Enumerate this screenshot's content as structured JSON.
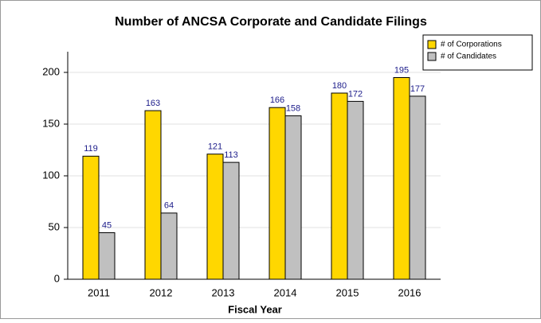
{
  "chart_data": {
    "type": "bar",
    "title": "Number of ANCSA Corporate and Candidate Filings",
    "xlabel": "Fiscal Year",
    "categories": [
      "2011",
      "2012",
      "2013",
      "2014",
      "2015",
      "2016"
    ],
    "series": [
      {
        "name": "# of Corporations",
        "color": "#ffd700",
        "values": [
          119,
          163,
          121,
          166,
          180,
          195
        ]
      },
      {
        "name": "# of Candidates",
        "color": "#c0c0c0",
        "values": [
          45,
          64,
          113,
          158,
          172,
          177
        ]
      }
    ],
    "ylim": [
      0,
      220
    ],
    "yticks": [
      0,
      50,
      100,
      150,
      200
    ],
    "grid": true,
    "legend": "upper right"
  }
}
